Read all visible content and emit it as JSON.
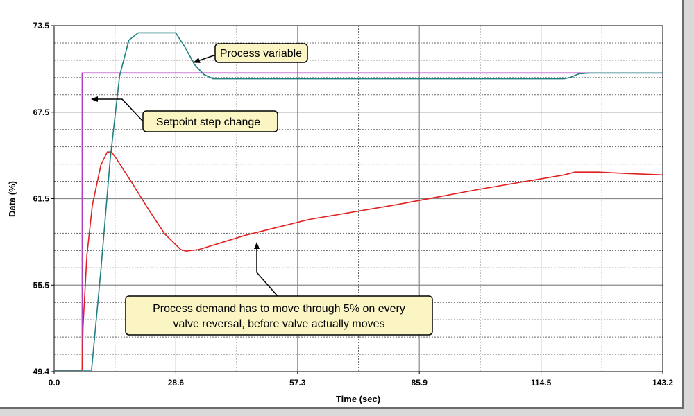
{
  "chart_data": {
    "type": "line",
    "xlabel": "Time (sec)",
    "ylabel": "Data (%)",
    "xlim": [
      0.0,
      143.2
    ],
    "ylim": [
      49.4,
      73.5
    ],
    "xticks": [
      "0.0",
      "28.6",
      "57.3",
      "85.9",
      "114.5",
      "143.2"
    ],
    "yticks": [
      "49.4",
      "55.5",
      "61.5",
      "67.5",
      "73.5"
    ],
    "grid": true,
    "series": [
      {
        "name": "Process variable",
        "color": "#1f7f7f",
        "x": [
          0.0,
          8.8,
          11.0,
          13.2,
          15.4,
          17.6,
          19.8,
          22.0,
          28.6,
          30.8,
          33.0,
          35.2,
          37.4,
          40.0,
          60.0,
          90.0,
          120.0,
          121.5,
          123.5,
          126.0,
          143.2
        ],
        "y": [
          49.5,
          49.5,
          56.5,
          64.2,
          70.0,
          72.5,
          73.0,
          73.0,
          73.0,
          72.0,
          70.8,
          70.1,
          69.8,
          69.8,
          69.8,
          69.8,
          69.8,
          69.9,
          70.15,
          70.2,
          70.2
        ]
      },
      {
        "name": "Setpoint step change",
        "color": "#b040c0",
        "x": [
          0.0,
          6.6,
          6.6,
          143.2
        ],
        "y": [
          49.5,
          49.5,
          70.2,
          70.2
        ]
      },
      {
        "name": "Process demand",
        "color": "#e02020",
        "x": [
          0.0,
          6.6,
          6.8,
          7.7,
          9.0,
          11.0,
          12.5,
          13.5,
          14.5,
          18.0,
          22.0,
          26.0,
          29.8,
          31.0,
          34.0,
          45.0,
          60.0,
          80.0,
          100.0,
          120.0,
          122.5,
          128.0,
          135.0,
          143.2
        ],
        "y": [
          49.5,
          49.5,
          52.5,
          57.5,
          61.0,
          63.8,
          64.7,
          64.7,
          64.3,
          62.7,
          60.8,
          59.0,
          57.9,
          57.8,
          57.9,
          58.9,
          60.0,
          61.0,
          62.1,
          63.1,
          63.3,
          63.3,
          63.2,
          63.1
        ]
      }
    ],
    "annotations": [
      {
        "text": "Process variable"
      },
      {
        "text": "Setpoint step change"
      },
      {
        "lines": [
          "Process demand has to move through 5% on every",
          "valve reversal, before valve actually moves"
        ]
      }
    ]
  }
}
